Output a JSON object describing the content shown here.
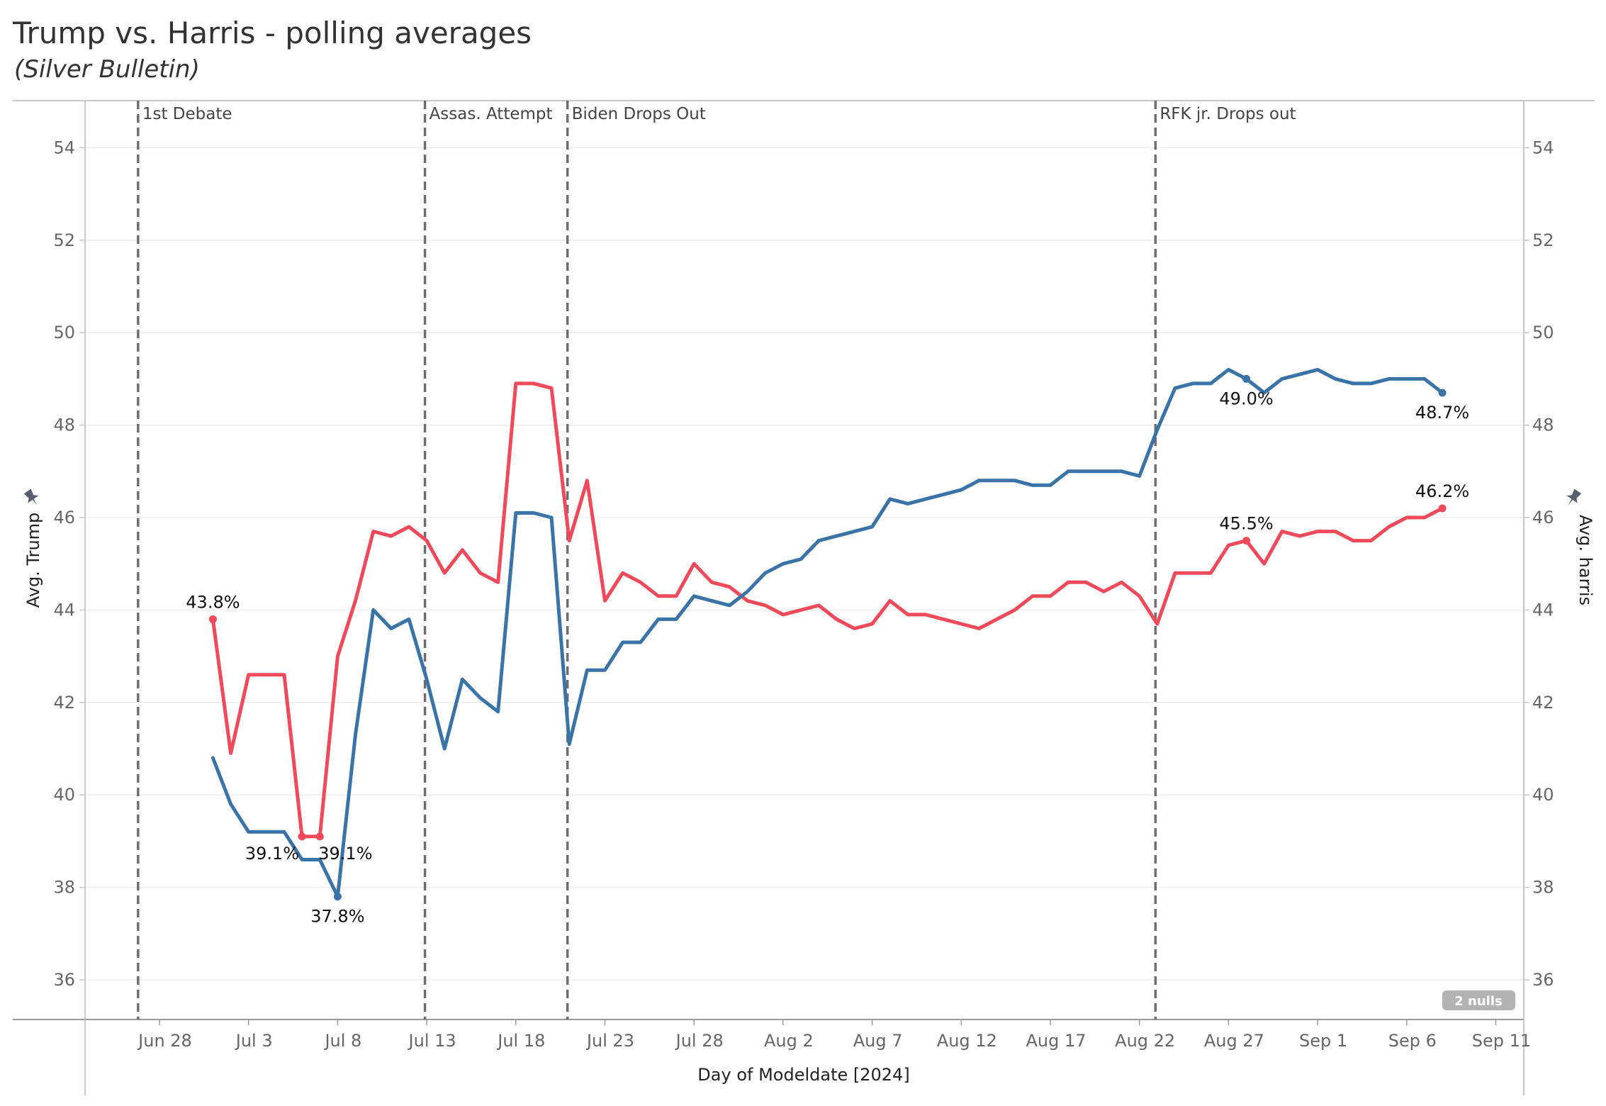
{
  "header": {
    "title": "Trump vs. Harris - polling averages",
    "subtitle": "(Silver Bulletin)"
  },
  "chart_data": {
    "type": "line",
    "xlabel": "Day of Modeldate [2024]",
    "ylabel_left": "Avg. Trump",
    "ylabel_right": "Avg. harris",
    "ylim": [
      35,
      55
    ],
    "yticks": [
      36,
      38,
      40,
      42,
      44,
      46,
      48,
      50,
      52,
      54
    ],
    "x_ticks": [
      {
        "day": 0,
        "label": "Jun 28"
      },
      {
        "day": 5,
        "label": "Jul 3"
      },
      {
        "day": 10,
        "label": "Jul 8"
      },
      {
        "day": 15,
        "label": "Jul 13"
      },
      {
        "day": 20,
        "label": "Jul 18"
      },
      {
        "day": 25,
        "label": "Jul 23"
      },
      {
        "day": 30,
        "label": "Jul 28"
      },
      {
        "day": 35,
        "label": "Aug 2"
      },
      {
        "day": 40,
        "label": "Aug 7"
      },
      {
        "day": 45,
        "label": "Aug 12"
      },
      {
        "day": 50,
        "label": "Aug 17"
      },
      {
        "day": 55,
        "label": "Aug 22"
      },
      {
        "day": 60,
        "label": "Aug 27"
      },
      {
        "day": 65,
        "label": "Sep 1"
      },
      {
        "day": 70,
        "label": "Sep 6"
      },
      {
        "day": 75,
        "label": "Sep 11"
      }
    ],
    "events": [
      {
        "day": -1.2,
        "label": "1st Debate"
      },
      {
        "day": 14.9,
        "label": "Assas. Attempt"
      },
      {
        "day": 22.9,
        "label": "Biden Drops Out"
      },
      {
        "day": 55.9,
        "label": "RFK jr. Drops out"
      }
    ],
    "series": [
      {
        "name": "Harris",
        "color": "#f04a5a",
        "axis": "right",
        "start_day": 3,
        "values": [
          43.8,
          40.9,
          42.6,
          42.6,
          42.6,
          39.1,
          39.1,
          43.0,
          44.2,
          45.7,
          45.6,
          45.8,
          45.5,
          44.8,
          45.3,
          44.8,
          44.6,
          48.9,
          48.9,
          48.8,
          45.5,
          46.8,
          44.2,
          44.8,
          44.6,
          44.3,
          44.3,
          45.0,
          44.6,
          44.5,
          44.2,
          44.1,
          43.9,
          44.0,
          44.1,
          43.8,
          43.6,
          43.7,
          44.2,
          43.9,
          43.9,
          43.8,
          43.7,
          43.6,
          43.8,
          44.0,
          44.3,
          44.3,
          44.6,
          44.6,
          44.4,
          44.6,
          44.3,
          43.7,
          44.8,
          44.8,
          44.8,
          45.4,
          45.5,
          45.0,
          45.7,
          45.6,
          45.7,
          45.7,
          45.5,
          45.5,
          45.8,
          46.0,
          46.0,
          46.2
        ],
        "labels": [
          {
            "index": 0,
            "text": "43.8%",
            "pos": "above"
          },
          {
            "index": 5,
            "text": "39.1%",
            "pos": "left-below"
          },
          {
            "index": 6,
            "text": "39.1%",
            "pos": "right-below"
          },
          {
            "index": 58,
            "text": "45.5%",
            "pos": "above"
          },
          {
            "index": 69,
            "text": "46.2%",
            "pos": "above"
          }
        ]
      },
      {
        "name": "Trump",
        "color": "#3a73a8",
        "axis": "left",
        "start_day": 3,
        "values": [
          40.8,
          39.8,
          39.2,
          39.2,
          39.2,
          38.6,
          38.6,
          37.8,
          41.3,
          44.0,
          43.6,
          43.8,
          42.5,
          41.0,
          42.5,
          42.1,
          41.8,
          46.1,
          46.1,
          46.0,
          41.1,
          42.7,
          42.7,
          43.3,
          43.3,
          43.8,
          43.8,
          44.3,
          44.2,
          44.1,
          44.4,
          44.8,
          45.0,
          45.1,
          45.5,
          45.6,
          45.7,
          45.8,
          46.4,
          46.3,
          46.4,
          46.5,
          46.6,
          46.8,
          46.8,
          46.8,
          46.7,
          46.7,
          47.0,
          47.0,
          47.0,
          47.0,
          46.9,
          47.9,
          48.8,
          48.9,
          48.9,
          49.2,
          49.0,
          48.7,
          49.0,
          49.1,
          49.2,
          49.0,
          48.9,
          48.9,
          49.0,
          49.0,
          49.0,
          48.7
        ],
        "labels": [
          {
            "index": 7,
            "text": "37.8%",
            "pos": "below"
          },
          {
            "index": 58,
            "text": "49.0%",
            "pos": "below"
          },
          {
            "index": 69,
            "text": "48.7%",
            "pos": "below"
          }
        ]
      }
    ],
    "nulls_badge": "2 nulls"
  }
}
